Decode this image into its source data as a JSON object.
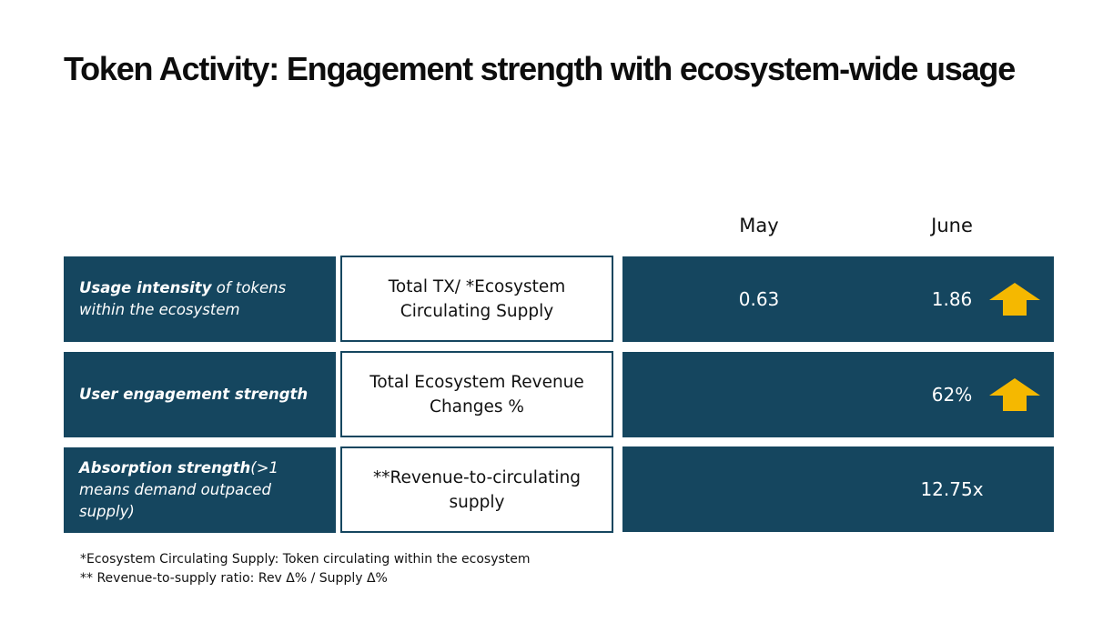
{
  "title": "Token Activity: Engagement strength with ecosystem-wide usage",
  "columns": {
    "may": "May",
    "june": "June"
  },
  "rows": [
    {
      "metric_bold": "Usage intensity",
      "metric_rest": " of tokens within the ecosystem",
      "formula": "Total TX/ *Ecosystem Circulating Supply",
      "may": "0.63",
      "june": "1.86",
      "trend_icon": "up-arrow-icon"
    },
    {
      "metric_bold": "User engagement strength",
      "metric_rest": "",
      "formula": "Total Ecosystem Revenue Changes %",
      "may": "",
      "june": "62%",
      "trend_icon": "up-arrow-icon"
    },
    {
      "metric_bold": "Absorption strength",
      "metric_rest": "(>1 means demand outpaced supply)",
      "formula": "**Revenue-to-circulating supply",
      "may": "",
      "june": "12.75x",
      "trend_icon": ""
    }
  ],
  "footnotes": [
    "*Ecosystem Circulating Supply: Token circulating within the ecosystem",
    "** Revenue-to-supply ratio: Rev Δ% / Supply Δ%"
  ],
  "colors": {
    "panel": "#15465f",
    "arrow": "#f5b800",
    "text_dark": "#111111",
    "text_light": "#ffffff"
  }
}
